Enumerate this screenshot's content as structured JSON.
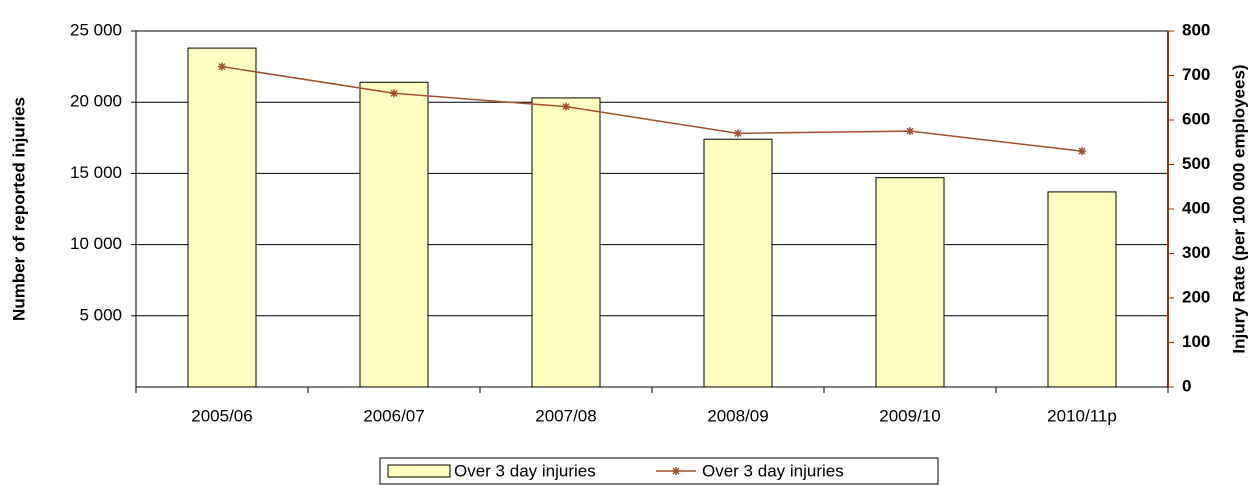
{
  "chart_data": {
    "type": "bar",
    "categories": [
      "2005/06",
      "2006/07",
      "2007/08",
      "2008/09",
      "2009/10",
      "2010/11p"
    ],
    "series": [
      {
        "name": "Over 3 day injuries",
        "type": "bar",
        "color": "#ffffc0",
        "values": [
          23800,
          21400,
          20300,
          17400,
          14700,
          13700
        ]
      },
      {
        "name": "Over 3 day injuries",
        "type": "line",
        "color": "#a0522d",
        "axis": "y2",
        "values": [
          720,
          660,
          630,
          570,
          575,
          530
        ]
      }
    ],
    "y_label": "Number of reported injuries",
    "y2_label": "Injury Rate (per 100 000 employees)",
    "ylim": [
      0,
      25000
    ],
    "yticks": [
      {
        "value": 5000,
        "label": "5 000"
      },
      {
        "value": 10000,
        "label": "10 000"
      },
      {
        "value": 15000,
        "label": "15 000"
      },
      {
        "value": 20000,
        "label": "20 000"
      },
      {
        "value": 25000,
        "label": "25 000"
      }
    ],
    "y2lim": [
      0,
      800
    ],
    "y2ticks": [
      0,
      100,
      200,
      300,
      400,
      500,
      600,
      700,
      800
    ],
    "y2_color": "#993300",
    "grid": true,
    "legend": "bottom"
  }
}
